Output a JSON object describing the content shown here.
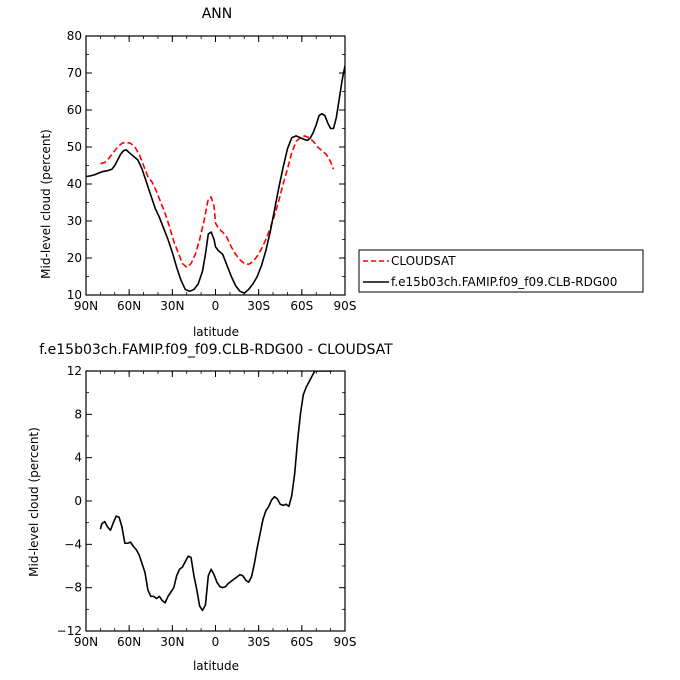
{
  "charts": [
    {
      "title": "ANN",
      "xlabel": "latitude",
      "ylabel": "Mid-level cloud (percent)"
    },
    {
      "title": "f.e15b03ch.FAMIP.f09_f09.CLB-RDG00 - CLOUDSAT",
      "xlabel": "latitude",
      "ylabel": "Mid-level cloud (percent)"
    }
  ],
  "chart_data": [
    {
      "type": "line",
      "title": "ANN",
      "xlabel": "latitude",
      "ylabel": "Mid-level cloud (percent)",
      "xlim": [
        -90,
        90
      ],
      "ylim": [
        10,
        80
      ],
      "xticks": [
        -90,
        -60,
        -30,
        0,
        30,
        60,
        90
      ],
      "xtick_labels": [
        "90N",
        "60N",
        "30N",
        "0",
        "30S",
        "60S",
        "90S"
      ],
      "yticks": [
        10,
        20,
        30,
        40,
        50,
        60,
        70,
        80
      ],
      "ytick_labels": [
        "10",
        "20",
        "30",
        "40",
        "50",
        "60",
        "70",
        "80"
      ],
      "legend_position": "right",
      "series": [
        {
          "name": "CLOUDSAT",
          "color": "#ff0000",
          "dash": true,
          "x": [
            -80,
            -77,
            -74,
            -71,
            -68,
            -65,
            -62,
            -59,
            -56,
            -53,
            -50,
            -47,
            -44,
            -41,
            -38,
            -35,
            -32,
            -29,
            -26,
            -23,
            -20,
            -17,
            -14,
            -11,
            -8,
            -5,
            -3,
            -1,
            0,
            2,
            5,
            8,
            11,
            14,
            17,
            20,
            23,
            26,
            29,
            32,
            35,
            38,
            41,
            44,
            47,
            50,
            53,
            56,
            59,
            62,
            65,
            68,
            71,
            74,
            77,
            80,
            82
          ],
          "y": [
            45.5,
            45.8,
            47,
            48.5,
            50,
            51,
            51.3,
            51,
            50,
            48,
            45,
            42,
            40.5,
            38,
            35,
            32,
            28.5,
            24.5,
            21.5,
            18.5,
            17.5,
            18.5,
            21,
            25,
            30,
            36,
            36.5,
            34,
            29.5,
            28,
            27,
            25.5,
            23,
            21,
            19.5,
            18.5,
            18.3,
            19,
            20.5,
            22.5,
            25,
            28,
            31.5,
            35.5,
            40,
            44,
            48.5,
            51.5,
            52.5,
            53,
            52.5,
            51.5,
            50,
            49,
            48,
            46,
            44
          ]
        },
        {
          "name": "f.e15b03ch.FAMIP.f09_f09.CLB-RDG00",
          "color": "#000000",
          "dash": false,
          "x": [
            -90,
            -87,
            -84,
            -81,
            -78,
            -75,
            -72,
            -70,
            -68,
            -66,
            -64,
            -62,
            -60,
            -57,
            -54,
            -51,
            -48,
            -45,
            -42,
            -39,
            -36,
            -33,
            -30,
            -27,
            -24,
            -21,
            -18,
            -15,
            -12,
            -9,
            -7,
            -5,
            -3,
            -1,
            0,
            2,
            5,
            8,
            11,
            14,
            17,
            20,
            23,
            26,
            29,
            32,
            35,
            38,
            41,
            44,
            47,
            50,
            53,
            56,
            59,
            62,
            64,
            66,
            68,
            70,
            72,
            74,
            76,
            78,
            80,
            82,
            84,
            86,
            88,
            90
          ],
          "y": [
            42,
            42.2,
            42.5,
            43,
            43.4,
            43.6,
            44,
            45,
            46.5,
            48,
            49,
            49.2,
            48.5,
            47.5,
            46.5,
            44,
            40.5,
            37,
            33.5,
            31,
            28,
            25,
            21.5,
            17.5,
            14,
            11.5,
            11,
            11.5,
            13,
            16.5,
            21,
            26.5,
            27,
            25,
            23,
            22,
            21,
            18,
            15,
            12.5,
            11,
            10.5,
            11.5,
            13,
            15,
            18,
            22,
            27,
            33,
            39,
            44.5,
            49.5,
            52.5,
            53,
            52.5,
            52,
            51.8,
            52.5,
            54,
            56,
            58.5,
            59,
            58.5,
            56.5,
            55,
            55,
            58,
            63,
            68,
            72
          ]
        }
      ]
    },
    {
      "type": "line",
      "title": "f.e15b03ch.FAMIP.f09_f09.CLB-RDG00 - CLOUDSAT",
      "xlabel": "latitude",
      "ylabel": "Mid-level cloud (percent)",
      "xlim": [
        -90,
        90
      ],
      "ylim": [
        -12,
        12
      ],
      "xticks": [
        -90,
        -60,
        -30,
        0,
        30,
        60,
        90
      ],
      "xtick_labels": [
        "90N",
        "60N",
        "30N",
        "0",
        "30S",
        "60S",
        "90S"
      ],
      "yticks": [
        -12,
        -8,
        -4,
        0,
        4,
        8,
        12
      ],
      "ytick_labels": [
        "−12",
        "−8",
        "−4",
        "0",
        "4",
        "8",
        "12"
      ],
      "series": [
        {
          "name": "",
          "color": "#000000",
          "dash": false,
          "x": [
            -80,
            -79,
            -77,
            -75,
            -73,
            -71,
            -69,
            -67,
            -65,
            -63,
            -61,
            -59,
            -57,
            -55,
            -53,
            -51,
            -49,
            -47,
            -45,
            -43,
            -41,
            -39,
            -37,
            -35,
            -33,
            -31,
            -29,
            -27,
            -25,
            -23,
            -21,
            -19,
            -17,
            -15,
            -13,
            -11,
            -9,
            -7,
            -5,
            -3,
            -1,
            1,
            3,
            5,
            7,
            9,
            11,
            13,
            15,
            17,
            19,
            21,
            23,
            25,
            27,
            29,
            31,
            33,
            35,
            37,
            39,
            41,
            43,
            45,
            47,
            49,
            51,
            53,
            55,
            57,
            59,
            61,
            63,
            65,
            67,
            69,
            71,
            73,
            75,
            77,
            79,
            81
          ],
          "y": [
            -2.6,
            -2.1,
            -1.9,
            -2.4,
            -2.7,
            -2.0,
            -1.4,
            -1.5,
            -2.4,
            -3.9,
            -3.9,
            -3.8,
            -4.2,
            -4.5,
            -5.0,
            -5.8,
            -6.6,
            -8.2,
            -8.8,
            -8.8,
            -9.0,
            -8.8,
            -9.2,
            -9.4,
            -8.8,
            -8.4,
            -8.0,
            -6.9,
            -6.3,
            -6.1,
            -5.6,
            -5.1,
            -5.2,
            -6.9,
            -8.2,
            -9.7,
            -10.1,
            -9.6,
            -6.9,
            -6.3,
            -6.8,
            -7.5,
            -7.9,
            -8.0,
            -7.9,
            -7.6,
            -7.4,
            -7.2,
            -7.0,
            -6.8,
            -6.9,
            -7.3,
            -7.5,
            -7.0,
            -5.8,
            -4.3,
            -3.0,
            -1.7,
            -0.9,
            -0.5,
            0.1,
            0.4,
            0.2,
            -0.3,
            -0.4,
            -0.3,
            -0.5,
            0.5,
            2.5,
            5.5,
            8.0,
            9.8,
            10.5,
            11.0,
            11.5,
            12.0,
            12.0,
            12.0,
            12.0,
            12.0,
            12.0,
            12.0
          ]
        }
      ]
    }
  ]
}
